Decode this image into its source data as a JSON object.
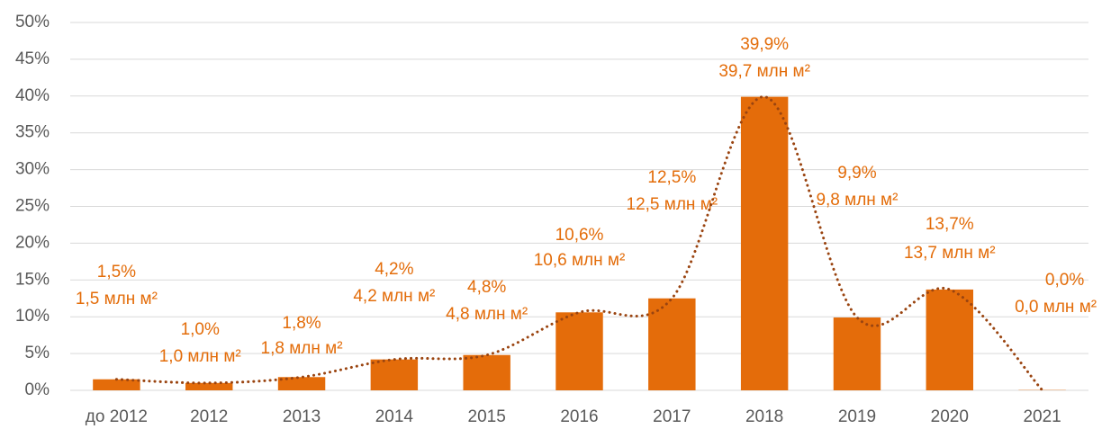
{
  "chart_data": {
    "type": "bar",
    "categories": [
      "до 2012",
      "2012",
      "2013",
      "2014",
      "2015",
      "2016",
      "2017",
      "2018",
      "2019",
      "2020",
      "2021"
    ],
    "values": [
      1.5,
      1.0,
      1.8,
      4.2,
      4.8,
      10.6,
      12.5,
      39.9,
      9.9,
      13.7,
      0.04
    ],
    "value_labels": [
      "1,5%",
      "1,0%",
      "1,8%",
      "4,2%",
      "4,8%",
      "10,6%",
      "12,5%",
      "39,9%",
      "9,9%",
      "13,7%",
      "0,0%"
    ],
    "area_labels": [
      "1,5 млн м²",
      "1,0 млн м²",
      "1,8 млн м²",
      "4,2 млн м²",
      "4,8 млн м²",
      "10,6 млн м²",
      "12,5 млн м²",
      "39,7 млн м²",
      "9,8 млн м²",
      "13,7 млн м²",
      "0,0 млн м²"
    ],
    "color": "#e46c0a",
    "label_color": "#e36c09",
    "trendline": true,
    "trendline_color": "#9a4410",
    "ylim": [
      0,
      50
    ],
    "yticks": [
      {
        "value": 0,
        "label": "0%"
      },
      {
        "value": 5,
        "label": "5%"
      },
      {
        "value": 10,
        "label": "10%"
      },
      {
        "value": 15,
        "label": "15%"
      },
      {
        "value": 20,
        "label": "20%"
      },
      {
        "value": 25,
        "label": "25%"
      },
      {
        "value": 30,
        "label": "30%"
      },
      {
        "value": 35,
        "label": "35%"
      },
      {
        "value": 40,
        "label": "40%"
      },
      {
        "value": 45,
        "label": "45%"
      },
      {
        "value": 50,
        "label": "50%"
      }
    ],
    "grid": true
  }
}
